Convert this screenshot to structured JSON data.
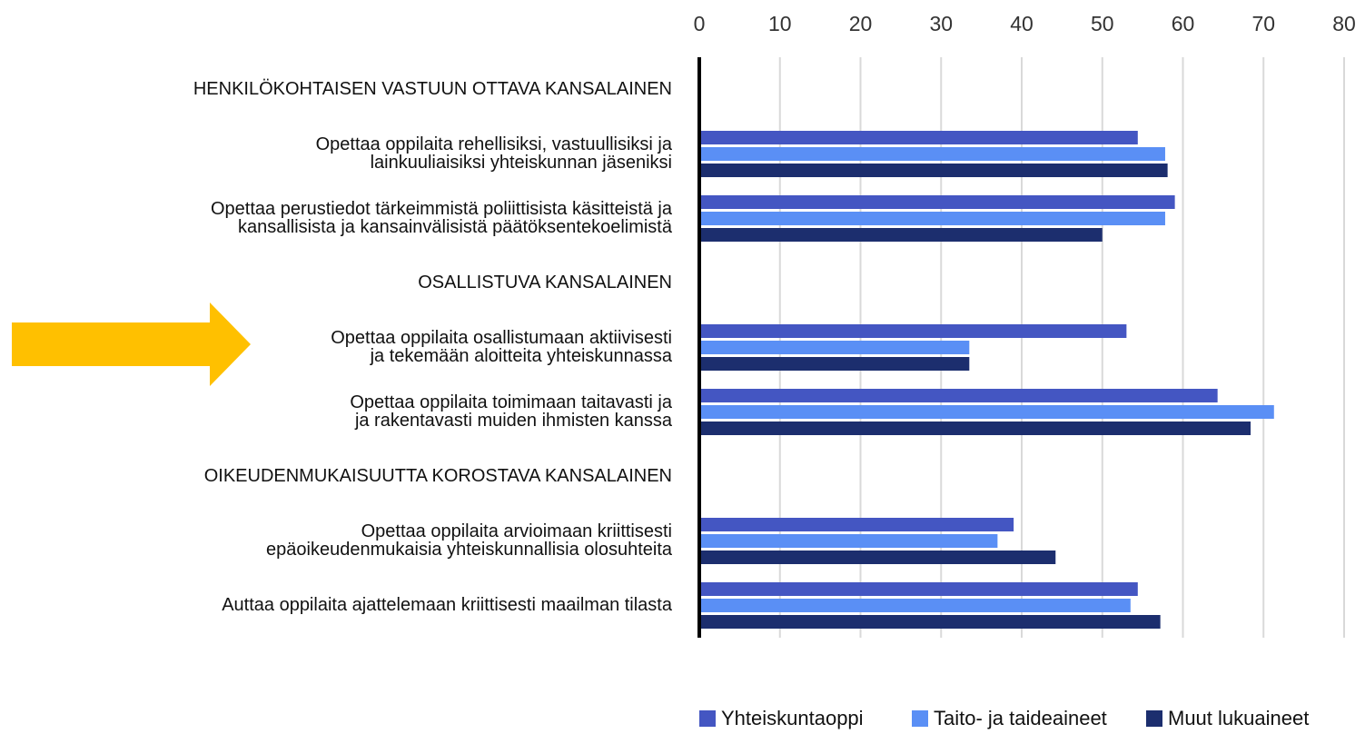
{
  "chart_data": {
    "type": "hbar",
    "categories": [
      [
        "HENKILÖKOHTAISEN VASTUUN OTTAVA KANSALAINEN"
      ],
      [
        "Opettaa oppilaita rehellisiksi, vastuullisiksi ja",
        "lainkuuliaisiksi yhteiskunnan jäseniksi"
      ],
      [
        "Opettaa perustiedot tärkeimmistä poliittisista käsitteistä ja",
        "kansallisista ja kansainvälisistä päätöksentekoelimistä"
      ],
      [
        "OSALLISTUVA KANSALAINEN"
      ],
      [
        "Opettaa oppilaita osallistumaan aktiivisesti",
        "ja tekemään aloitteita yhteiskunnassa"
      ],
      [
        "Opettaa oppilaita toimimaan taitavasti ja",
        "ja rakentavasti muiden ihmisten kanssa"
      ],
      [
        "OIKEUDENMUKAISUUTTA KOROSTAVA KANSALAINEN"
      ],
      [
        "Opettaa oppilaita arvioimaan kriittisesti",
        "epäoikeudenmukaisia yhteiskunnallisia olosuhteita"
      ],
      [
        "Auttaa oppilaita ajattelemaan kriittisesti maailman tilasta"
      ]
    ],
    "series": [
      {
        "name": "Yhteiskuntaoppi",
        "color": "#4456c2",
        "values": [
          null,
          54.4,
          59,
          null,
          53,
          64.3,
          null,
          39,
          54.4
        ]
      },
      {
        "name": "Taito- ja taideaineet",
        "color": "#5a8ff5",
        "values": [
          null,
          57.8,
          57.8,
          null,
          33.5,
          71.3,
          null,
          37,
          53.5
        ]
      },
      {
        "name": "Muut lukuaineet",
        "color": "#1c2e6e",
        "values": [
          null,
          58.1,
          50,
          null,
          33.5,
          68.4,
          null,
          44.2,
          57.2
        ]
      }
    ],
    "xlim": [
      0,
      80
    ],
    "xticks": [
      0,
      10,
      20,
      30,
      40,
      50,
      60,
      70,
      80
    ],
    "grid": true,
    "legend": "bottom"
  }
}
